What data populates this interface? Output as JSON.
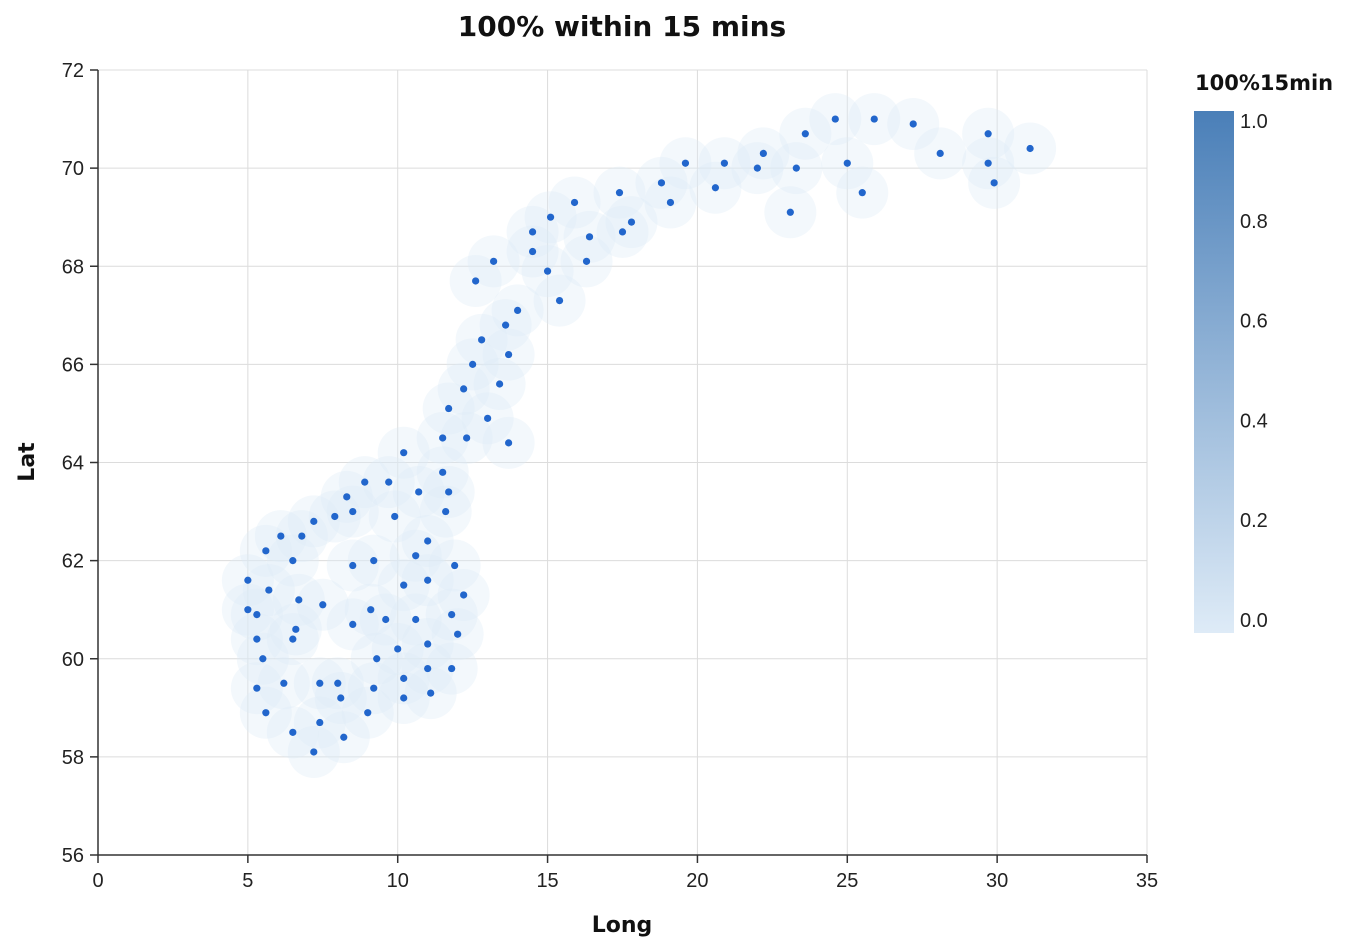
{
  "chart_data": {
    "type": "scatter",
    "title": "100% within 15 mins",
    "xlabel": "Long",
    "ylabel": "Lat",
    "xlim": [
      0,
      35
    ],
    "ylim": [
      56,
      72
    ],
    "x_ticks": [
      0,
      5,
      10,
      15,
      20,
      25,
      30,
      35
    ],
    "y_ticks": [
      56,
      58,
      60,
      62,
      64,
      66,
      68,
      70,
      72
    ],
    "grid": true,
    "legend": {
      "title": "100%15min",
      "placement": "right",
      "type": "gradient",
      "color_low": "#deebf7",
      "color_high": "#4a7fb8",
      "domain": [
        0.0,
        1.0
      ],
      "tick_labels": [
        "1.0",
        "0.8",
        "0.6",
        "0.4",
        "0.2",
        "0.0"
      ]
    },
    "point_color": "#2266cc",
    "points": [
      {
        "x": 31.1,
        "y": 70.4,
        "v": 1
      },
      {
        "x": 29.9,
        "y": 69.7,
        "v": 1
      },
      {
        "x": 29.7,
        "y": 70.7,
        "v": 1
      },
      {
        "x": 29.7,
        "y": 70.1,
        "v": 1
      },
      {
        "x": 28.1,
        "y": 70.3,
        "v": 1
      },
      {
        "x": 27.2,
        "y": 70.9,
        "v": 1
      },
      {
        "x": 25.9,
        "y": 71.0,
        "v": 1
      },
      {
        "x": 24.6,
        "y": 71.0,
        "v": 1
      },
      {
        "x": 25.0,
        "y": 70.1,
        "v": 1
      },
      {
        "x": 25.5,
        "y": 69.5,
        "v": 1
      },
      {
        "x": 23.6,
        "y": 70.7,
        "v": 1
      },
      {
        "x": 23.3,
        "y": 70.0,
        "v": 1
      },
      {
        "x": 23.1,
        "y": 69.1,
        "v": 1
      },
      {
        "x": 22.2,
        "y": 70.3,
        "v": 1
      },
      {
        "x": 22.0,
        "y": 70.0,
        "v": 1
      },
      {
        "x": 20.9,
        "y": 70.1,
        "v": 1
      },
      {
        "x": 20.6,
        "y": 69.6,
        "v": 1
      },
      {
        "x": 19.6,
        "y": 70.1,
        "v": 1
      },
      {
        "x": 19.1,
        "y": 69.3,
        "v": 1
      },
      {
        "x": 18.8,
        "y": 69.7,
        "v": 1
      },
      {
        "x": 17.8,
        "y": 68.9,
        "v": 1
      },
      {
        "x": 17.4,
        "y": 69.5,
        "v": 1
      },
      {
        "x": 17.5,
        "y": 68.7,
        "v": 1
      },
      {
        "x": 16.4,
        "y": 68.6,
        "v": 1
      },
      {
        "x": 15.9,
        "y": 69.3,
        "v": 1
      },
      {
        "x": 16.3,
        "y": 68.1,
        "v": 1
      },
      {
        "x": 15.1,
        "y": 69.0,
        "v": 1
      },
      {
        "x": 14.5,
        "y": 68.7,
        "v": 1
      },
      {
        "x": 14.5,
        "y": 68.3,
        "v": 1
      },
      {
        "x": 15.0,
        "y": 67.9,
        "v": 1
      },
      {
        "x": 15.4,
        "y": 67.3,
        "v": 1
      },
      {
        "x": 13.2,
        "y": 68.1,
        "v": 1
      },
      {
        "x": 12.6,
        "y": 67.7,
        "v": 1
      },
      {
        "x": 14.0,
        "y": 67.1,
        "v": 1
      },
      {
        "x": 13.6,
        "y": 66.8,
        "v": 1
      },
      {
        "x": 12.8,
        "y": 66.5,
        "v": 1
      },
      {
        "x": 13.7,
        "y": 66.2,
        "v": 1
      },
      {
        "x": 12.5,
        "y": 66.0,
        "v": 1
      },
      {
        "x": 12.2,
        "y": 65.5,
        "v": 1
      },
      {
        "x": 13.4,
        "y": 65.6,
        "v": 1
      },
      {
        "x": 11.7,
        "y": 65.1,
        "v": 1
      },
      {
        "x": 13.0,
        "y": 64.9,
        "v": 1
      },
      {
        "x": 11.5,
        "y": 64.5,
        "v": 1
      },
      {
        "x": 12.3,
        "y": 64.5,
        "v": 1
      },
      {
        "x": 13.7,
        "y": 64.4,
        "v": 1
      },
      {
        "x": 10.2,
        "y": 64.2,
        "v": 1
      },
      {
        "x": 11.5,
        "y": 63.8,
        "v": 1
      },
      {
        "x": 9.7,
        "y": 63.6,
        "v": 1
      },
      {
        "x": 10.7,
        "y": 63.4,
        "v": 1
      },
      {
        "x": 8.9,
        "y": 63.6,
        "v": 1
      },
      {
        "x": 11.7,
        "y": 63.4,
        "v": 1
      },
      {
        "x": 8.3,
        "y": 63.3,
        "v": 1
      },
      {
        "x": 11.6,
        "y": 63.0,
        "v": 1
      },
      {
        "x": 8.5,
        "y": 63.0,
        "v": 1
      },
      {
        "x": 9.9,
        "y": 62.9,
        "v": 1
      },
      {
        "x": 7.2,
        "y": 62.8,
        "v": 1
      },
      {
        "x": 7.9,
        "y": 62.9,
        "v": 1
      },
      {
        "x": 6.1,
        "y": 62.5,
        "v": 1
      },
      {
        "x": 6.8,
        "y": 62.5,
        "v": 1
      },
      {
        "x": 11.0,
        "y": 62.4,
        "v": 1
      },
      {
        "x": 5.6,
        "y": 62.2,
        "v": 1
      },
      {
        "x": 10.6,
        "y": 62.1,
        "v": 1
      },
      {
        "x": 9.2,
        "y": 62.0,
        "v": 1
      },
      {
        "x": 6.5,
        "y": 62.0,
        "v": 1
      },
      {
        "x": 8.5,
        "y": 61.9,
        "v": 1
      },
      {
        "x": 11.9,
        "y": 61.9,
        "v": 1
      },
      {
        "x": 5.0,
        "y": 61.6,
        "v": 1
      },
      {
        "x": 10.2,
        "y": 61.5,
        "v": 1
      },
      {
        "x": 11.0,
        "y": 61.6,
        "v": 1
      },
      {
        "x": 5.7,
        "y": 61.4,
        "v": 1
      },
      {
        "x": 12.2,
        "y": 61.3,
        "v": 1
      },
      {
        "x": 6.7,
        "y": 61.2,
        "v": 1
      },
      {
        "x": 7.5,
        "y": 61.1,
        "v": 1
      },
      {
        "x": 5.0,
        "y": 61.0,
        "v": 1
      },
      {
        "x": 9.1,
        "y": 61.0,
        "v": 1
      },
      {
        "x": 5.3,
        "y": 60.9,
        "v": 1
      },
      {
        "x": 11.8,
        "y": 60.9,
        "v": 1
      },
      {
        "x": 10.6,
        "y": 60.8,
        "v": 1
      },
      {
        "x": 9.6,
        "y": 60.8,
        "v": 1
      },
      {
        "x": 8.5,
        "y": 60.7,
        "v": 1
      },
      {
        "x": 6.6,
        "y": 60.6,
        "v": 1
      },
      {
        "x": 12.0,
        "y": 60.5,
        "v": 1
      },
      {
        "x": 5.3,
        "y": 60.4,
        "v": 1
      },
      {
        "x": 6.5,
        "y": 60.4,
        "v": 1
      },
      {
        "x": 11.0,
        "y": 60.3,
        "v": 1
      },
      {
        "x": 10.0,
        "y": 60.2,
        "v": 1
      },
      {
        "x": 5.5,
        "y": 60.0,
        "v": 1
      },
      {
        "x": 9.3,
        "y": 60.0,
        "v": 1
      },
      {
        "x": 11.0,
        "y": 59.8,
        "v": 1
      },
      {
        "x": 11.8,
        "y": 59.8,
        "v": 1
      },
      {
        "x": 10.2,
        "y": 59.6,
        "v": 1
      },
      {
        "x": 7.4,
        "y": 59.5,
        "v": 1
      },
      {
        "x": 8.0,
        "y": 59.5,
        "v": 1
      },
      {
        "x": 5.3,
        "y": 59.4,
        "v": 1
      },
      {
        "x": 6.2,
        "y": 59.5,
        "v": 1
      },
      {
        "x": 9.2,
        "y": 59.4,
        "v": 1
      },
      {
        "x": 11.1,
        "y": 59.3,
        "v": 1
      },
      {
        "x": 8.1,
        "y": 59.2,
        "v": 1
      },
      {
        "x": 10.2,
        "y": 59.2,
        "v": 1
      },
      {
        "x": 5.6,
        "y": 58.9,
        "v": 1
      },
      {
        "x": 9.0,
        "y": 58.9,
        "v": 1
      },
      {
        "x": 7.4,
        "y": 58.7,
        "v": 1
      },
      {
        "x": 6.5,
        "y": 58.5,
        "v": 1
      },
      {
        "x": 8.2,
        "y": 58.4,
        "v": 1
      },
      {
        "x": 7.2,
        "y": 58.1,
        "v": 1
      }
    ]
  }
}
